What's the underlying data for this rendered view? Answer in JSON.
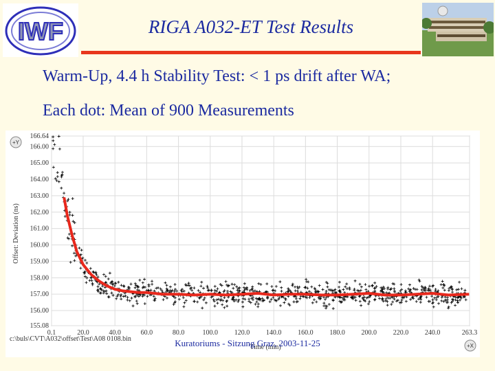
{
  "slide": {
    "title": "RIGA A032-ET Test Results",
    "bullets": [
      "Warm-Up, 4.4 h Stability Test: < 1 ps drift after WA;",
      "Each dot: Mean of 900 Measurements"
    ],
    "footer": "Kuratoriums - Sitzung Graz, 2003-11-25",
    "logo_text": "IWF"
  },
  "chart_data": {
    "type": "scatter",
    "title": "",
    "ylabel": "Offset: Deviation (ns)",
    "xlabel": "Time (min)",
    "ylim": [
      155.08,
      166.64
    ],
    "xlim": [
      0.1,
      263.3
    ],
    "y_ticks": [
      "166.64",
      "166.00",
      "165.00",
      "164.00",
      "163.00",
      "162.00",
      "161.00",
      "160.00",
      "159.00",
      "158.00",
      "157.00",
      "156.00",
      "155.08"
    ],
    "y_tick_values": [
      166.64,
      166.0,
      165.0,
      164.0,
      163.0,
      162.0,
      161.0,
      160.0,
      159.0,
      158.0,
      157.0,
      156.0,
      155.08
    ],
    "x_ticks": [
      "0.1",
      "20.0",
      "40.0",
      "60.0",
      "80.0",
      "100.0",
      "120.0",
      "140.0",
      "160.0",
      "180.0",
      "200.0",
      "220.0",
      "240.0",
      "263.3"
    ],
    "x_tick_values": [
      0.1,
      20,
      40,
      60,
      80,
      100,
      120,
      140,
      160,
      180,
      200,
      220,
      240,
      263.3
    ],
    "y_axis_marker": "+Y",
    "x_axis_marker": "+X",
    "file_path": "c:\\buls\\CVT\\A032\\offset\\Test\\A08 0108.bin",
    "grid": true,
    "trend_color": "#e8281c",
    "points_color": "#000000",
    "trend_series": {
      "x": [
        8,
        10,
        13,
        16,
        20,
        25,
        30,
        35,
        40,
        45,
        50,
        55,
        60,
        65,
        70,
        80,
        90,
        100,
        110,
        120,
        130,
        140,
        150,
        160,
        170,
        180,
        190,
        200,
        210,
        220,
        230,
        240,
        250,
        263
      ],
      "y": [
        162.9,
        161.8,
        160.6,
        159.6,
        158.8,
        158.2,
        157.8,
        157.5,
        157.3,
        157.2,
        157.15,
        157.1,
        157.1,
        157.05,
        157.0,
        157.0,
        156.95,
        157.0,
        156.95,
        157.0,
        157.05,
        156.95,
        157.0,
        157.0,
        156.95,
        156.95,
        157.0,
        157.05,
        156.95,
        156.95,
        157.0,
        157.05,
        156.95,
        157.0
      ]
    }
  }
}
